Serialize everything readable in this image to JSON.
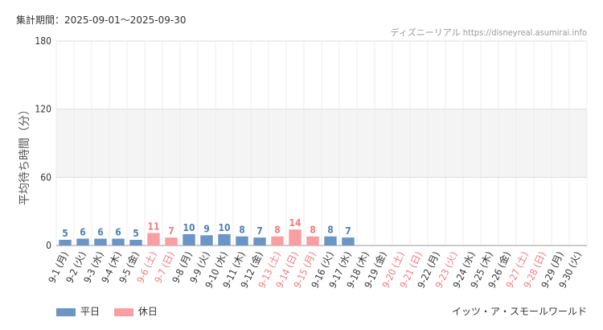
{
  "header": {
    "period": "集計期間：2025-09-01～2025-09-30",
    "source": "ディズニーリアル https://disneyreal.asumirai.info"
  },
  "footer": {
    "attraction": "イッツ・ア・スモールワールド"
  },
  "colors": {
    "weekday": "#6a95c4",
    "holiday": "#f99ea2",
    "weekday_text": "#4f80b8",
    "holiday_text": "#ef7b80"
  },
  "chart_data": {
    "type": "bar",
    "ylabel": "平均待ち時間（分）",
    "ylim": [
      0,
      180
    ],
    "yticks": [
      0,
      60,
      120,
      180
    ],
    "legend": [
      "平日",
      "休日"
    ],
    "legend_position": "bottom-left",
    "categories": [
      "9-1 (月)",
      "9-2 (火)",
      "9-3 (水)",
      "9-4 (木)",
      "9-5 (金)",
      "9-6 (土)",
      "9-7 (日)",
      "9-8 (月)",
      "9-9 (火)",
      "9-10 (水)",
      "9-11 (木)",
      "9-12 (金)",
      "9-13 (土)",
      "9-14 (日)",
      "9-15 (月)",
      "9-16 (火)",
      "9-17 (水)",
      "9-18 (木)",
      "9-19 (金)",
      "9-20 (土)",
      "9-21 (日)",
      "9-22 (月)",
      "9-23 (火)",
      "9-24 (水)",
      "9-25 (木)",
      "9-26 (金)",
      "9-27 (土)",
      "9-28 (日)",
      "9-29 (月)",
      "9-30 (火)"
    ],
    "holiday": [
      false,
      false,
      false,
      false,
      false,
      true,
      true,
      false,
      false,
      false,
      false,
      false,
      true,
      true,
      true,
      false,
      false,
      false,
      false,
      true,
      true,
      false,
      true,
      false,
      false,
      false,
      true,
      true,
      false,
      false
    ],
    "values": [
      5,
      6,
      6,
      6,
      5,
      11,
      7,
      10,
      9,
      10,
      8,
      7,
      8,
      14,
      8,
      8,
      7,
      null,
      null,
      null,
      null,
      null,
      null,
      null,
      null,
      null,
      null,
      null,
      null,
      null
    ]
  }
}
